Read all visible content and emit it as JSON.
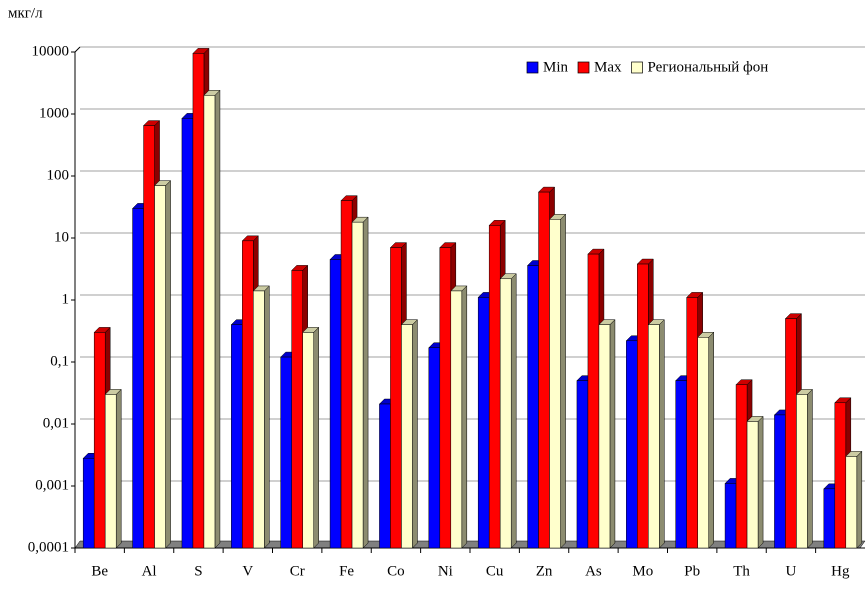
{
  "chart_data": {
    "type": "bar3d",
    "y_label": "мкг/л",
    "log_scale": true,
    "grid": true,
    "legend": "upper right",
    "categories": [
      "Be",
      "Al",
      "S",
      "V",
      "Cr",
      "Fe",
      "Co",
      "Ni",
      "Cu",
      "Zn",
      "As",
      "Mo",
      "Pb",
      "Th",
      "U",
      "Hg"
    ],
    "series": [
      {
        "name": "Min",
        "color": "#0000ff",
        "values": [
          0.0028,
          30,
          850,
          0.4,
          0.12,
          4.5,
          0.021,
          0.17,
          1.1,
          3.6,
          0.05,
          0.22,
          0.05,
          0.0011,
          0.014,
          0.0009
        ]
      },
      {
        "name": "Max",
        "color": "#ff0000",
        "values": [
          0.3,
          650,
          9500,
          9,
          3,
          40,
          7,
          7,
          16,
          55,
          5.5,
          3.8,
          1.1,
          0.043,
          0.5,
          0.022
        ]
      },
      {
        "name": "Региональный фон",
        "color": "#ffffcc",
        "values": [
          0.03,
          70,
          2000,
          1.4,
          0.3,
          18,
          0.4,
          1.4,
          2.2,
          20,
          0.4,
          0.4,
          0.25,
          0.011,
          0.03,
          0.003
        ]
      }
    ],
    "ylim": [
      0.0001,
      10000
    ],
    "yticks": [
      {
        "value": 0.0001,
        "label": "0,0001"
      },
      {
        "value": 0.001,
        "label": "0,001"
      },
      {
        "value": 0.01,
        "label": "0,01"
      },
      {
        "value": 0.1,
        "label": "0,1"
      },
      1,
      10,
      100,
      1000,
      10000
    ]
  }
}
